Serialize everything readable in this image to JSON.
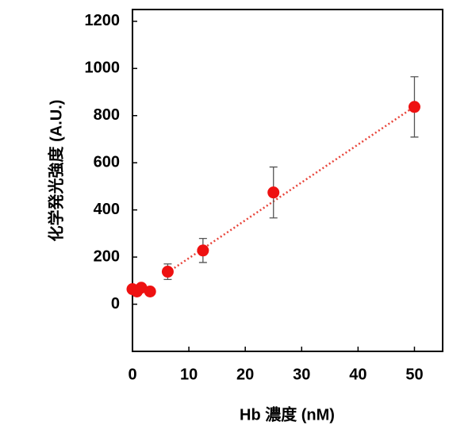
{
  "chart_data": {
    "type": "scatter",
    "x_label": "Hb 濃度 (nM)",
    "y_label": "化学発光強度 (A.U.)",
    "series": [
      {
        "color": "#ee1111",
        "x": [
          0,
          0.78,
          1.56,
          3.125,
          6.25,
          12.5,
          25,
          50
        ],
        "values": [
          64,
          54,
          70,
          54,
          138,
          228,
          474,
          837
        ],
        "errors": [
          null,
          null,
          null,
          null,
          33,
          51,
          108,
          128
        ]
      }
    ],
    "trendline": {
      "color": "#e8443a",
      "x": [
        6.25,
        50
      ],
      "y": [
        135,
        838
      ]
    },
    "xlim": [
      0,
      55
    ],
    "xticks": [
      0,
      10,
      20,
      30,
      40,
      50
    ],
    "ylim": [
      -200,
      1250
    ],
    "yticks": [
      0,
      200,
      400,
      600,
      800,
      1000,
      1200
    ]
  }
}
